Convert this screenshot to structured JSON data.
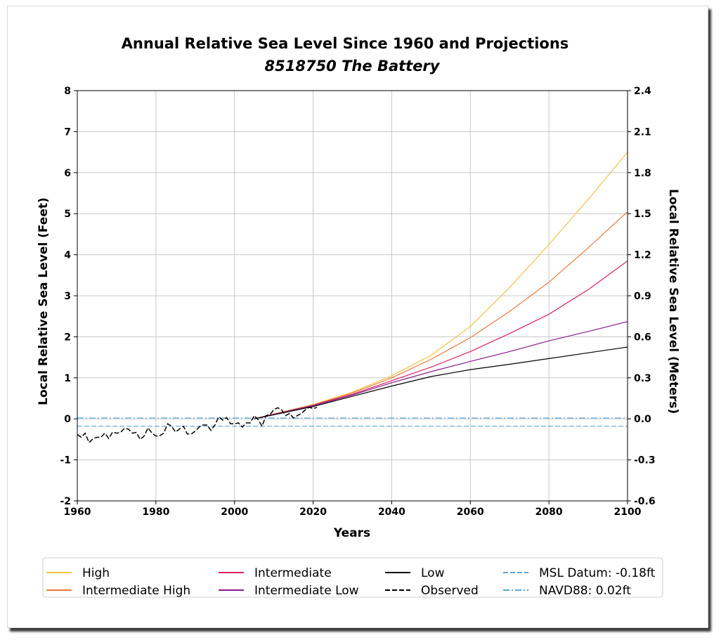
{
  "chart_data": {
    "type": "line",
    "title": "Annual Relative Sea Level Since 1960 and Projections",
    "subtitle": "8518750 The Battery",
    "xlabel": "Years",
    "ylabel": "Local Relative Sea Level (Feet)",
    "ylabel_right": "Local Relative Sea Level (Meters)",
    "xlim": [
      1960,
      2100
    ],
    "ylim": [
      -2,
      8
    ],
    "ylim_right": [
      -0.6,
      2.4
    ],
    "x_ticks": [
      "1960",
      "1980",
      "2000",
      "2020",
      "2040",
      "2060",
      "2080",
      "2100"
    ],
    "y_ticks": [
      "-2",
      "-1",
      "0",
      "1",
      "2",
      "3",
      "4",
      "5",
      "6",
      "7",
      "8"
    ],
    "y_ticks_right": [
      "-0.6",
      "-0.3",
      "0.0",
      "0.3",
      "0.6",
      "0.9",
      "1.2",
      "1.5",
      "1.8",
      "2.1",
      "2.4"
    ],
    "grid": true,
    "legend_position": "bottom",
    "series": [
      {
        "name": "High",
        "color": "#f5c342",
        "style": "solid",
        "x": [
          2005,
          2010,
          2020,
          2030,
          2040,
          2050,
          2060,
          2070,
          2080,
          2090,
          2100
        ],
        "y": [
          0.0,
          0.12,
          0.35,
          0.65,
          1.05,
          1.55,
          2.25,
          3.2,
          4.25,
          5.35,
          6.5
        ]
      },
      {
        "name": "Intermediate High",
        "color": "#f0783c",
        "style": "solid",
        "x": [
          2005,
          2010,
          2020,
          2030,
          2040,
          2050,
          2060,
          2070,
          2080,
          2090,
          2100
        ],
        "y": [
          0.0,
          0.12,
          0.34,
          0.63,
          1.0,
          1.45,
          1.98,
          2.62,
          3.33,
          4.17,
          5.05
        ]
      },
      {
        "name": "Intermediate",
        "color": "#d6245e",
        "style": "solid",
        "x": [
          2005,
          2010,
          2020,
          2030,
          2040,
          2050,
          2060,
          2070,
          2080,
          2090,
          2100
        ],
        "y": [
          0.0,
          0.11,
          0.33,
          0.6,
          0.93,
          1.26,
          1.64,
          2.08,
          2.55,
          3.15,
          3.85
        ]
      },
      {
        "name": "Intermediate Low",
        "color": "#8c1a8c",
        "style": "solid",
        "x": [
          2005,
          2010,
          2020,
          2030,
          2040,
          2050,
          2060,
          2070,
          2080,
          2090,
          2100
        ],
        "y": [
          0.0,
          0.11,
          0.32,
          0.58,
          0.88,
          1.15,
          1.4,
          1.64,
          1.9,
          2.13,
          2.37
        ]
      },
      {
        "name": "Low",
        "color": "#000000",
        "style": "solid",
        "x": [
          2005,
          2010,
          2020,
          2030,
          2040,
          2050,
          2060,
          2070,
          2080,
          2090,
          2100
        ],
        "y": [
          0.0,
          0.1,
          0.3,
          0.55,
          0.8,
          1.03,
          1.2,
          1.33,
          1.47,
          1.61,
          1.75
        ]
      },
      {
        "name": "Observed",
        "color": "#000000",
        "style": "dashed",
        "x": [
          1960,
          1961,
          1962,
          1963,
          1964,
          1965,
          1966,
          1967,
          1968,
          1969,
          1970,
          1971,
          1972,
          1973,
          1974,
          1975,
          1976,
          1977,
          1978,
          1979,
          1980,
          1981,
          1982,
          1983,
          1984,
          1985,
          1986,
          1987,
          1988,
          1989,
          1990,
          1991,
          1992,
          1993,
          1994,
          1995,
          1996,
          1997,
          1998,
          1999,
          2000,
          2001,
          2002,
          2003,
          2004,
          2005,
          2006,
          2007,
          2008,
          2009,
          2010,
          2011,
          2012,
          2013,
          2014,
          2015,
          2016,
          2017,
          2018,
          2019,
          2020,
          2021
        ],
        "y": [
          -0.38,
          -0.45,
          -0.35,
          -0.58,
          -0.48,
          -0.45,
          -0.45,
          -0.35,
          -0.48,
          -0.32,
          -0.35,
          -0.33,
          -0.23,
          -0.25,
          -0.35,
          -0.33,
          -0.5,
          -0.42,
          -0.22,
          -0.35,
          -0.42,
          -0.41,
          -0.35,
          -0.12,
          -0.18,
          -0.32,
          -0.25,
          -0.18,
          -0.37,
          -0.37,
          -0.3,
          -0.2,
          -0.15,
          -0.15,
          -0.28,
          -0.15,
          0.05,
          -0.03,
          0.03,
          -0.12,
          -0.12,
          -0.1,
          -0.2,
          -0.1,
          -0.1,
          0.08,
          -0.02,
          -0.18,
          0.08,
          0.1,
          0.22,
          0.27,
          0.22,
          0.08,
          0.13,
          0.02,
          0.08,
          0.13,
          0.22,
          0.28,
          0.25,
          0.28
        ]
      },
      {
        "name": "MSL Datum: -0.18ft",
        "color": "#5aa6d6",
        "style": "dashed",
        "x": [
          1960,
          2100
        ],
        "y": [
          -0.18,
          -0.18
        ]
      },
      {
        "name": "NAVD88: 0.02ft",
        "color": "#5aa6d6",
        "style": "dashdot",
        "x": [
          1960,
          2100
        ],
        "y": [
          0.02,
          0.02
        ]
      }
    ]
  }
}
